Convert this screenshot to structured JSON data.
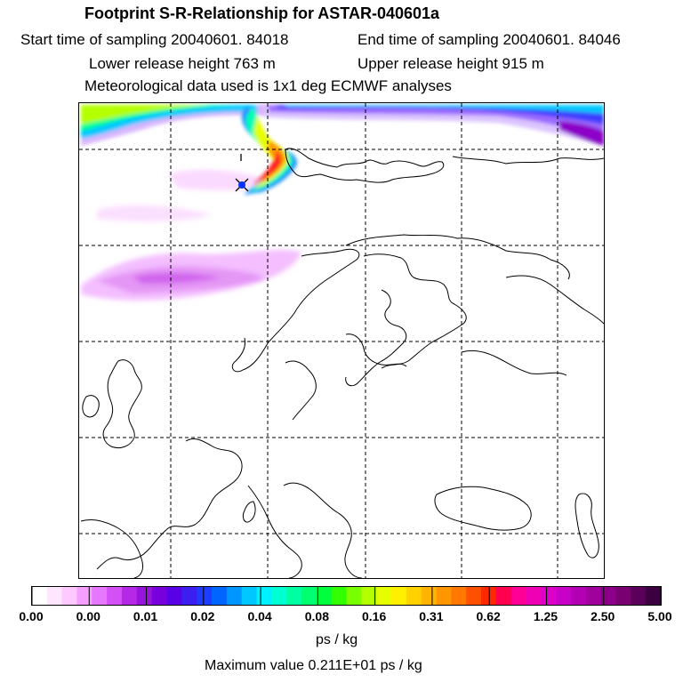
{
  "title": "Footprint S-R-Relationship for ASTAR-040601a",
  "start_time": "Start time of sampling 20040601. 84018",
  "end_time": "End time of sampling 20040601. 84046",
  "lower_height": "Lower release height  763 m",
  "upper_height": "Upper release height  915 m",
  "met_data": "Meteorological data used is 1x1 deg ECMWF analyses",
  "units": "ps / kg",
  "max_value": "Maximum value  0.211E+01 ps / kg",
  "colorbar": {
    "labels": [
      "0.00",
      "0.00",
      "0.01",
      "0.02",
      "0.04",
      "0.08",
      "0.16",
      "0.31",
      "0.62",
      "1.25",
      "2.50",
      "5.00"
    ],
    "colors": [
      "#ffffff",
      "#ffe6ff",
      "#ffc8ff",
      "#f5a0ff",
      "#e678ff",
      "#d250f5",
      "#b428e6",
      "#9614dc",
      "#7800dc",
      "#5a00e6",
      "#3c1ef0",
      "#1e3cff",
      "#0064ff",
      "#0096ff",
      "#00c8ff",
      "#00f0ff",
      "#00ffd2",
      "#00ffa0",
      "#00ff6e",
      "#00ff3c",
      "#32ff00",
      "#78ff00",
      "#b4ff00",
      "#e6ff00",
      "#fff000",
      "#ffd200",
      "#ffb400",
      "#ff9600",
      "#ff7800",
      "#ff5000",
      "#ff2800",
      "#ff0050",
      "#ff0096",
      "#f000b4",
      "#dc00c8",
      "#c800c8",
      "#b400b4",
      "#a0009b",
      "#8c0087",
      "#780070",
      "#5a005a",
      "#3c0040"
    ]
  }
}
